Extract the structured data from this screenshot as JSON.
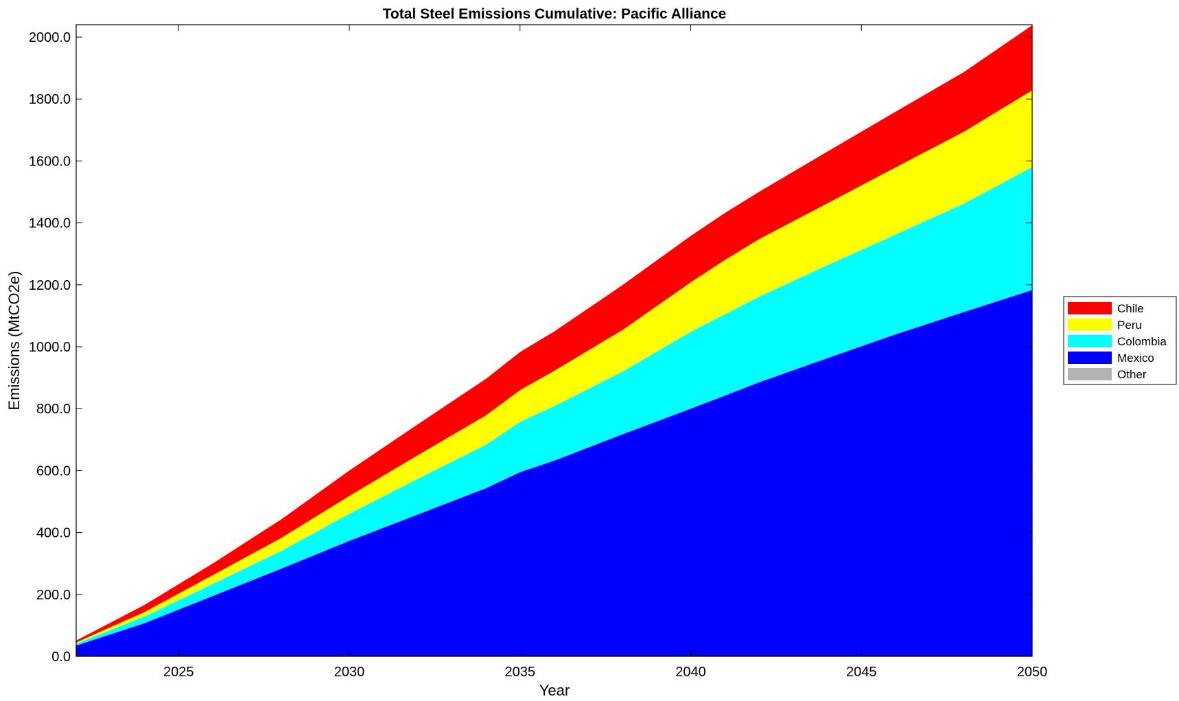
{
  "chart_data": {
    "type": "area",
    "stacked": true,
    "title": "Total Steel Emissions Cumulative: Pacific Alliance",
    "xlabel": "Year",
    "ylabel": "Emissions (MtCO2e)",
    "xlim": [
      2022,
      2050
    ],
    "ylim": [
      0,
      2040
    ],
    "xticks": [
      2025,
      2030,
      2035,
      2040,
      2045,
      2050
    ],
    "yticks": [
      "0.0",
      "200.0",
      "400.0",
      "600.0",
      "800.0",
      "1000.0",
      "1200.0",
      "1400.0",
      "1600.0",
      "1800.0",
      "2000.0"
    ],
    "x": [
      2022,
      2024,
      2026,
      2028,
      2030,
      2032,
      2034,
      2035,
      2036,
      2038,
      2040,
      2041,
      2042,
      2044,
      2046,
      2048,
      2050
    ],
    "series": [
      {
        "name": "Other",
        "color": "#b3b3b3",
        "values": [
          0,
          0,
          0,
          0,
          0,
          0,
          0,
          0,
          0,
          0,
          0,
          0,
          0,
          0,
          0,
          0,
          0
        ]
      },
      {
        "name": "Mexico",
        "color": "#0000ff",
        "values": [
          35,
          107,
          195,
          283,
          373,
          458,
          543,
          595,
          632,
          717,
          800,
          842,
          885,
          963,
          1040,
          1112,
          1183
        ]
      },
      {
        "name": "Colombia",
        "color": "#00ffff",
        "values": [
          6,
          21,
          39,
          57,
          87,
          115,
          140,
          162,
          176,
          202,
          248,
          263,
          276,
          300,
          322,
          350,
          397
        ]
      },
      {
        "name": "Peru",
        "color": "#ffff00",
        "values": [
          4,
          15,
          28,
          42,
          58,
          76,
          95,
          103,
          114,
          135,
          160,
          175,
          186,
          200,
          217,
          232,
          248
        ]
      },
      {
        "name": "Chile",
        "color": "#ff0000",
        "values": [
          6,
          23,
          38,
          60,
          82,
          100,
          118,
          123,
          127,
          145,
          150,
          152,
          153,
          167,
          180,
          193,
          210
        ]
      }
    ],
    "legend_order": [
      "Chile",
      "Peru",
      "Colombia",
      "Mexico",
      "Other"
    ],
    "legend_placement": "right",
    "grid": false
  }
}
